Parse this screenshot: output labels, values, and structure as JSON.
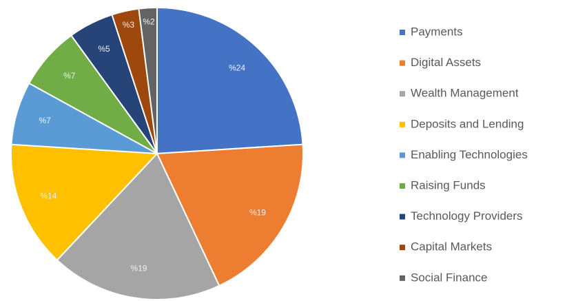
{
  "chart_data": {
    "type": "pie",
    "categories": [
      "Payments",
      "Digital Assets",
      "Wealth Management",
      "Deposits and Lending",
      "Enabling Technologies",
      "Raising Funds",
      "Technology Providers",
      "Capital Markets",
      "Social Finance"
    ],
    "values": [
      24,
      19,
      19,
      14,
      7,
      7,
      5,
      3,
      2
    ],
    "value_labels": [
      "%24",
      "%19",
      "%19",
      "%14",
      "%7",
      "%7",
      "%5",
      "%3",
      "%2"
    ],
    "colors": [
      "#4472c4",
      "#ed7d31",
      "#a5a5a5",
      "#ffc000",
      "#5b9bd5",
      "#70ad47",
      "#264478",
      "#9e480e",
      "#636363"
    ],
    "legend": "right"
  }
}
